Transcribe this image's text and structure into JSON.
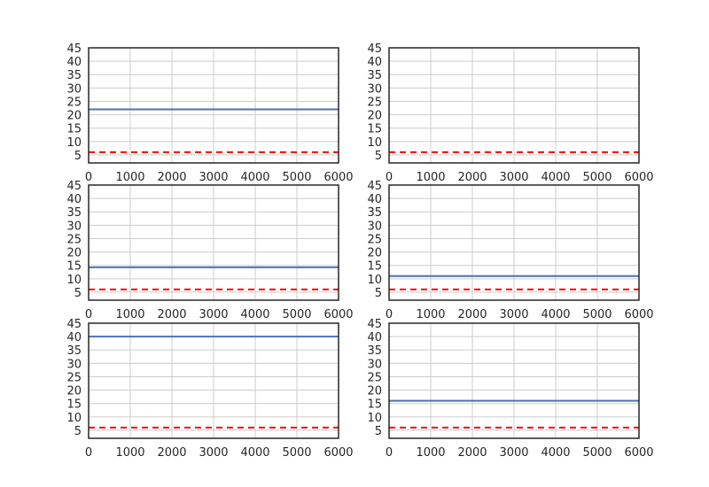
{
  "chart_data": [
    {
      "type": "line",
      "xlim": [
        0,
        6000
      ],
      "ylim": [
        2,
        45
      ],
      "xticks": [
        0,
        1000,
        2000,
        3000,
        4000,
        5000,
        6000
      ],
      "yticks": [
        5,
        10,
        15,
        20,
        25,
        30,
        35,
        40,
        45
      ],
      "grid": true,
      "series": [
        {
          "x": [
            0,
            6000
          ],
          "y": [
            22,
            22
          ],
          "color": "#4c72b0",
          "style": "solid"
        },
        {
          "x": [
            0,
            6000
          ],
          "y": [
            6,
            6
          ],
          "color": "#ff0000",
          "style": "dashed"
        }
      ]
    },
    {
      "type": "line",
      "xlim": [
        0,
        6000
      ],
      "ylim": [
        2,
        45
      ],
      "xticks": [
        0,
        1000,
        2000,
        3000,
        4000,
        5000,
        6000
      ],
      "yticks": [
        5,
        10,
        15,
        20,
        25,
        30,
        35,
        40,
        45
      ],
      "grid": true,
      "series": [
        {
          "x": [
            0,
            6000
          ],
          "y": [
            6,
            6
          ],
          "color": "#ff0000",
          "style": "dashed"
        }
      ]
    },
    {
      "type": "line",
      "xlim": [
        0,
        6000
      ],
      "ylim": [
        2,
        45
      ],
      "xticks": [
        0,
        1000,
        2000,
        3000,
        4000,
        5000,
        6000
      ],
      "yticks": [
        5,
        10,
        15,
        20,
        25,
        30,
        35,
        40,
        45
      ],
      "grid": true,
      "series": [
        {
          "x": [
            0,
            6000
          ],
          "y": [
            14.3,
            14.3
          ],
          "color": "#4c72b0",
          "style": "solid"
        },
        {
          "x": [
            0,
            6000
          ],
          "y": [
            6,
            6
          ],
          "color": "#ff0000",
          "style": "dashed"
        }
      ]
    },
    {
      "type": "line",
      "xlim": [
        0,
        6000
      ],
      "ylim": [
        2,
        45
      ],
      "xticks": [
        0,
        1000,
        2000,
        3000,
        4000,
        5000,
        6000
      ],
      "yticks": [
        5,
        10,
        15,
        20,
        25,
        30,
        35,
        40,
        45
      ],
      "grid": true,
      "series": [
        {
          "x": [
            0,
            6000
          ],
          "y": [
            11,
            11
          ],
          "color": "#4c72b0",
          "style": "solid"
        },
        {
          "x": [
            0,
            6000
          ],
          "y": [
            6,
            6
          ],
          "color": "#ff0000",
          "style": "dashed"
        }
      ]
    },
    {
      "type": "line",
      "xlim": [
        0,
        6000
      ],
      "ylim": [
        2,
        45
      ],
      "xticks": [
        0,
        1000,
        2000,
        3000,
        4000,
        5000,
        6000
      ],
      "yticks": [
        5,
        10,
        15,
        20,
        25,
        30,
        35,
        40,
        45
      ],
      "grid": true,
      "series": [
        {
          "x": [
            0,
            6000
          ],
          "y": [
            40,
            40
          ],
          "color": "#4c72b0",
          "style": "solid"
        },
        {
          "x": [
            0,
            6000
          ],
          "y": [
            6,
            6
          ],
          "color": "#ff0000",
          "style": "dashed"
        }
      ]
    },
    {
      "type": "line",
      "xlim": [
        0,
        6000
      ],
      "ylim": [
        2,
        45
      ],
      "xticks": [
        0,
        1000,
        2000,
        3000,
        4000,
        5000,
        6000
      ],
      "yticks": [
        5,
        10,
        15,
        20,
        25,
        30,
        35,
        40,
        45
      ],
      "grid": true,
      "series": [
        {
          "x": [
            0,
            6000
          ],
          "y": [
            16,
            16
          ],
          "color": "#4c72b0",
          "style": "solid"
        },
        {
          "x": [
            0,
            6000
          ],
          "y": [
            6,
            6
          ],
          "color": "#ff0000",
          "style": "dashed"
        }
      ]
    }
  ]
}
